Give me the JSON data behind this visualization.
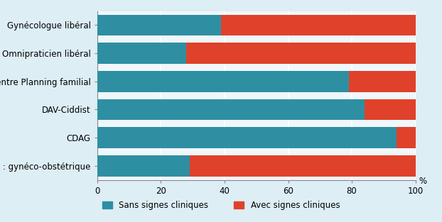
{
  "categories": [
    "Gynécologue libéral",
    "Omnipraticien libéral",
    "Centre Planning familial",
    "DAV-Ciddist",
    "CDAG",
    "Hôpital : gynéco-obstétrique"
  ],
  "sans_signes": [
    39,
    28,
    79,
    84,
    94,
    29
  ],
  "avec_signes": [
    61,
    72,
    21,
    16,
    6,
    71
  ],
  "color_sans": "#2e8fa3",
  "color_avec": "#e0412a",
  "background_color": "#ddeef4",
  "plot_bg_color": "#f0f7fa",
  "legend_sans": "Sans signes cliniques",
  "legend_avec": "Avec signes cliniques",
  "xlim": [
    0,
    100
  ],
  "bar_height": 0.75,
  "grid_color": "#ffffff",
  "tick_label_size": 8.5,
  "axis_label_size": 8.5,
  "legend_fontsize": 8.5,
  "bottom_banner_color": "#1a9aaa"
}
